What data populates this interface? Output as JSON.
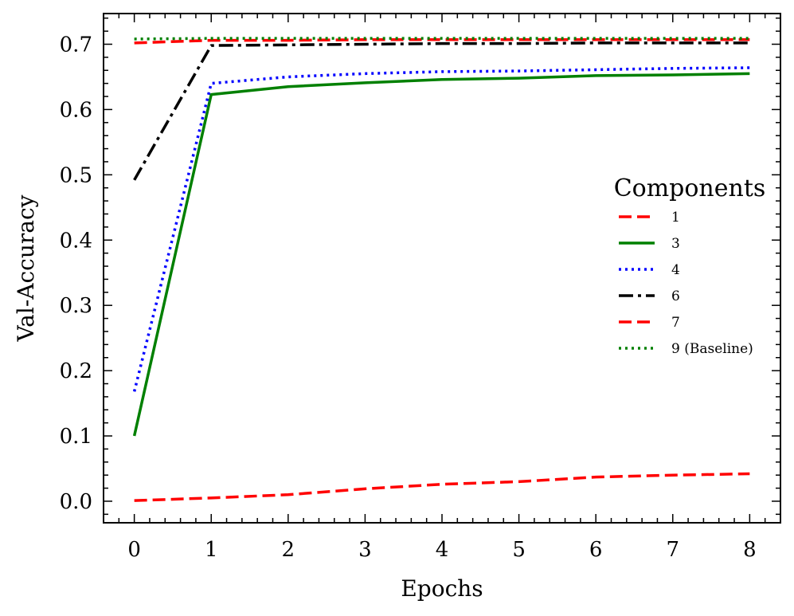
{
  "chart_data": {
    "type": "line",
    "xlabel": "Epochs",
    "ylabel": "Val-Accuracy",
    "xlim": [
      -0.4,
      8.4
    ],
    "ylim": [
      -0.033,
      0.747
    ],
    "xticks": [
      0,
      1,
      2,
      3,
      4,
      5,
      6,
      7,
      8
    ],
    "xtick_labels": [
      "0",
      "1",
      "2",
      "3",
      "4",
      "5",
      "6",
      "7",
      "8"
    ],
    "yticks": [
      0.0,
      0.1,
      0.2,
      0.3,
      0.4,
      0.5,
      0.6,
      0.7
    ],
    "ytick_labels": [
      "0.0",
      "0.1",
      "0.2",
      "0.3",
      "0.4",
      "0.5",
      "0.6",
      "0.7"
    ],
    "grid": false,
    "legend": {
      "title": "Components",
      "position": "center-right"
    },
    "x": [
      0,
      1,
      2,
      3,
      4,
      5,
      6,
      7,
      8
    ],
    "series": [
      {
        "name": "1",
        "color": "#ff0000",
        "style": "dashed",
        "values": [
          0.001,
          0.005,
          0.01,
          0.019,
          0.026,
          0.03,
          0.037,
          0.04,
          0.042
        ]
      },
      {
        "name": "3",
        "color": "#008000",
        "style": "solid",
        "values": [
          0.1,
          0.623,
          0.635,
          0.641,
          0.646,
          0.648,
          0.652,
          0.653,
          0.655
        ]
      },
      {
        "name": "4",
        "color": "#0000ff",
        "style": "dotted",
        "values": [
          0.168,
          0.64,
          0.65,
          0.655,
          0.658,
          0.659,
          0.661,
          0.663,
          0.664
        ]
      },
      {
        "name": "6",
        "color": "#000000",
        "style": "dashdot",
        "values": [
          0.492,
          0.698,
          0.699,
          0.7,
          0.701,
          0.701,
          0.702,
          0.702,
          0.702
        ]
      },
      {
        "name": "7",
        "color": "#ff0000",
        "style": "dashed",
        "values": [
          0.702,
          0.706,
          0.706,
          0.707,
          0.707,
          0.707,
          0.707,
          0.707,
          0.707
        ]
      },
      {
        "name": "9 (Baseline)",
        "color": "#008000",
        "style": "dotted",
        "values": [
          0.708,
          0.709,
          0.709,
          0.709,
          0.709,
          0.709,
          0.709,
          0.709,
          0.709
        ]
      }
    ]
  }
}
